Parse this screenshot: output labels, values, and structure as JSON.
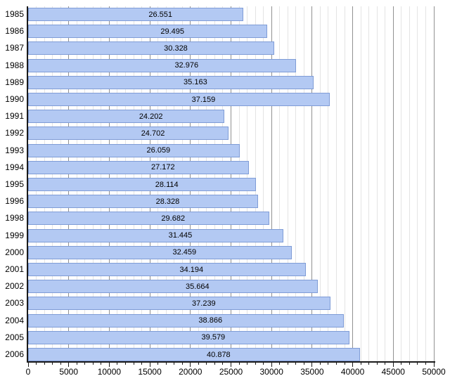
{
  "chart_data": {
    "type": "bar",
    "orientation": "horizontal",
    "title": "",
    "xlabel": "",
    "ylabel": "",
    "categories": [
      "1985",
      "1986",
      "1987",
      "1988",
      "1989",
      "1990",
      "1991",
      "1992",
      "1993",
      "1994",
      "1995",
      "1996",
      "1998",
      "1999",
      "2000",
      "2001",
      "2002",
      "2003",
      "2004",
      "2005",
      "2006"
    ],
    "values": [
      26551,
      29495,
      30328,
      32976,
      35163,
      37159,
      24202,
      24702,
      26059,
      27172,
      28114,
      28328,
      29682,
      31445,
      32459,
      34194,
      35664,
      37239,
      38866,
      39579,
      40878
    ],
    "value_labels": [
      "26.551",
      "29.495",
      "30.328",
      "32.976",
      "35.163",
      "37.159",
      "24.202",
      "24.702",
      "26.059",
      "27.172",
      "28.114",
      "28.328",
      "29.682",
      "31.445",
      "32.459",
      "34.194",
      "35.664",
      "37.239",
      "38.866",
      "39.579",
      "40.878"
    ],
    "xlim": [
      0,
      50000
    ],
    "x_ticks": [
      0,
      5000,
      10000,
      15000,
      20000,
      25000,
      30000,
      35000,
      40000,
      45000,
      50000
    ],
    "x_tick_labels": [
      "0",
      "5000",
      "10000",
      "15000",
      "20000",
      "25000",
      "30000",
      "35000",
      "40000",
      "45000",
      "50000"
    ],
    "grid": {
      "minor_step": 1000,
      "major_step": 5000,
      "minor_color": "#e4e4e4",
      "major_color": "#919191"
    },
    "colors": {
      "bar_fill": "#b3c9f3",
      "bar_border": "#7f9cd6",
      "axis": "#1a1a1a",
      "text": "#000000",
      "background": "#ffffff"
    },
    "legend": null
  }
}
